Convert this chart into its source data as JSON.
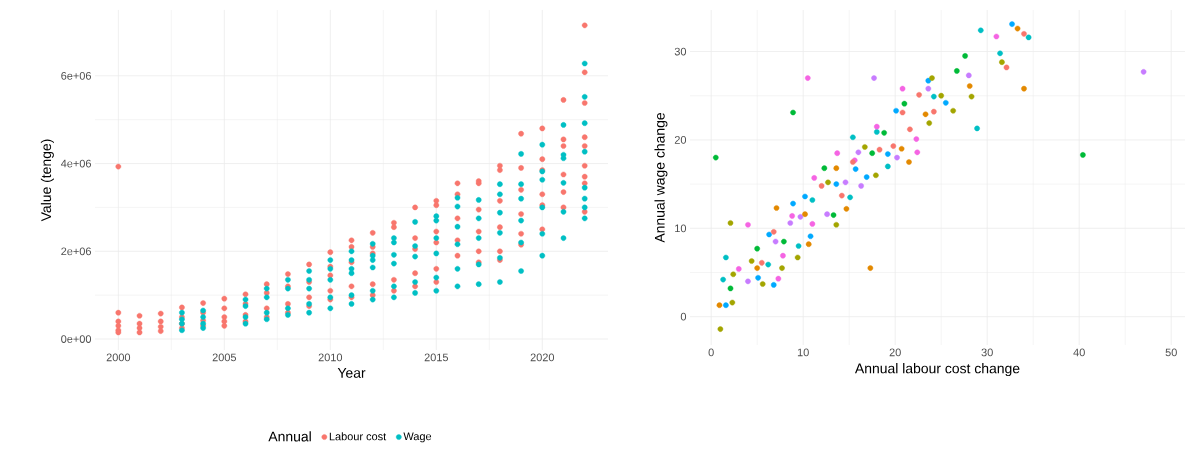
{
  "chart_data": [
    {
      "type": "scatter",
      "xlabel": "Year",
      "ylabel": "Value (tenge)",
      "legend_title": "Annual",
      "legend": "bottom",
      "grid": true,
      "marker": "circle",
      "xlim": [
        1998.9,
        2023.1
      ],
      "ylim": [
        -250000,
        7500000
      ],
      "xticks": [
        2000,
        2005,
        2010,
        2015,
        2020
      ],
      "yticks": [
        {
          "value": 0,
          "label": "0e+00"
        },
        {
          "value": 2000000,
          "label": "2e+06"
        },
        {
          "value": 4000000,
          "label": "4e+06"
        },
        {
          "value": 6000000,
          "label": "6e+06"
        }
      ],
      "series": [
        {
          "name": "Labour cost",
          "color": "#f8766d",
          "x": [
            2000,
            2000,
            2000,
            2000,
            2000,
            2000,
            2001,
            2001,
            2001,
            2001,
            2002,
            2002,
            2002,
            2002,
            2003,
            2003,
            2003,
            2003,
            2004,
            2004,
            2004,
            2004,
            2005,
            2005,
            2005,
            2005,
            2005,
            2006,
            2006,
            2006,
            2006,
            2007,
            2007,
            2007,
            2007,
            2008,
            2008,
            2008,
            2008,
            2009,
            2009,
            2009,
            2009,
            2010,
            2010,
            2010,
            2010,
            2010,
            2011,
            2011,
            2011,
            2011,
            2011,
            2012,
            2012,
            2012,
            2012,
            2012,
            2013,
            2013,
            2013,
            2013,
            2014,
            2014,
            2014,
            2014,
            2014,
            2015,
            2015,
            2015,
            2015,
            2015,
            2015,
            2016,
            2016,
            2016,
            2016,
            2016,
            2017,
            2017,
            2017,
            2017,
            2017,
            2017,
            2018,
            2018,
            2018,
            2018,
            2018,
            2018,
            2019,
            2019,
            2019,
            2019,
            2019,
            2019,
            2020,
            2020,
            2020,
            2020,
            2020,
            2020,
            2021,
            2021,
            2021,
            2021,
            2021,
            2021,
            2022,
            2022,
            2022,
            2022,
            2022,
            2022,
            2022,
            2022,
            2022
          ],
          "values": [
            3930000,
            600000,
            400000,
            300000,
            200000,
            150000,
            530000,
            350000,
            250000,
            150000,
            580000,
            400000,
            280000,
            180000,
            720000,
            500000,
            350000,
            250000,
            820000,
            600000,
            420000,
            300000,
            920000,
            700000,
            500000,
            400000,
            300000,
            1020000,
            800000,
            550000,
            400000,
            1250000,
            1050000,
            700000,
            500000,
            1480000,
            1200000,
            800000,
            600000,
            1700000,
            1300000,
            950000,
            750000,
            1980000,
            1650000,
            1450000,
            1100000,
            900000,
            2250000,
            2100000,
            1750000,
            1200000,
            950000,
            2420000,
            2100000,
            1950000,
            1250000,
            1000000,
            2650000,
            2550000,
            1350000,
            1100000,
            3000000,
            2300000,
            2050000,
            1500000,
            1200000,
            3150000,
            3050000,
            2450000,
            2200000,
            1600000,
            1300000,
            3550000,
            3300000,
            2750000,
            2250000,
            1900000,
            3600000,
            3550000,
            2950000,
            2450000,
            2000000,
            1750000,
            3950000,
            3850000,
            3150000,
            2550000,
            2000000,
            1800000,
            4680000,
            3900000,
            3400000,
            2850000,
            2400000,
            2150000,
            4800000,
            4100000,
            3850000,
            3300000,
            3050000,
            2500000,
            5450000,
            4550000,
            4400000,
            3750000,
            3350000,
            3000000,
            7150000,
            6080000,
            5380000,
            4600000,
            4400000,
            3950000,
            3700000,
            3550000,
            2900000
          ]
        },
        {
          "name": "Wage",
          "color": "#00bfc4",
          "x": [
            2003,
            2003,
            2003,
            2003,
            2004,
            2004,
            2004,
            2004,
            2006,
            2006,
            2006,
            2006,
            2007,
            2007,
            2007,
            2007,
            2008,
            2008,
            2008,
            2008,
            2009,
            2009,
            2009,
            2009,
            2009,
            2010,
            2010,
            2010,
            2010,
            2010,
            2011,
            2011,
            2011,
            2011,
            2011,
            2011,
            2012,
            2012,
            2012,
            2012,
            2012,
            2012,
            2013,
            2013,
            2013,
            2013,
            2013,
            2013,
            2014,
            2014,
            2014,
            2014,
            2014,
            2015,
            2015,
            2015,
            2015,
            2015,
            2015,
            2016,
            2016,
            2016,
            2016,
            2016,
            2016,
            2017,
            2017,
            2017,
            2017,
            2017,
            2018,
            2018,
            2018,
            2018,
            2018,
            2018,
            2019,
            2019,
            2019,
            2019,
            2019,
            2019,
            2020,
            2020,
            2020,
            2020,
            2020,
            2020,
            2021,
            2021,
            2021,
            2021,
            2021,
            2021,
            2022,
            2022,
            2022,
            2022,
            2022,
            2022,
            2022,
            2022
          ],
          "values": [
            600000,
            450000,
            350000,
            200000,
            650000,
            500000,
            350000,
            250000,
            900000,
            750000,
            500000,
            350000,
            1150000,
            950000,
            600000,
            450000,
            1350000,
            1150000,
            700000,
            550000,
            1550000,
            1350000,
            1150000,
            800000,
            600000,
            1800000,
            1600000,
            1350000,
            950000,
            700000,
            2000000,
            1800000,
            1600000,
            1500000,
            1000000,
            800000,
            2170000,
            1900000,
            1800000,
            1630000,
            1100000,
            900000,
            2300000,
            2200000,
            1920000,
            1720000,
            1200000,
            950000,
            2670000,
            2120000,
            1880000,
            1300000,
            1050000,
            2800000,
            2700000,
            2300000,
            1950000,
            1400000,
            1100000,
            3220000,
            3020000,
            2560000,
            2160000,
            1600000,
            1200000,
            3170000,
            2750000,
            2300000,
            1700000,
            1250000,
            3530000,
            3300000,
            2880000,
            2420000,
            1850000,
            1300000,
            4220000,
            3530000,
            3200000,
            2700000,
            2200000,
            1550000,
            4430000,
            3820000,
            3630000,
            3000000,
            2400000,
            1900000,
            4880000,
            4200000,
            4120000,
            3560000,
            2900000,
            2300000,
            6280000,
            5520000,
            4920000,
            4270000,
            3450000,
            3200000,
            3000000,
            2750000
          ]
        }
      ]
    },
    {
      "type": "scatter",
      "xlabel": "Annual labour cost change",
      "ylabel": "Annual wage change",
      "grid": true,
      "marker": "circle",
      "xlim": [
        -2.3,
        51.5
      ],
      "ylim": [
        -3.2,
        34.7
      ],
      "xticks": [
        0,
        10,
        20,
        30,
        40,
        50
      ],
      "yticks": [
        0,
        10,
        20,
        30
      ],
      "series": [
        {
          "color": "#00ba38",
          "x": [
            0.5,
            8.9,
            40.4,
            26.7,
            27.6,
            21,
            12.3,
            5,
            2.1,
            13.3,
            17.5,
            7.9,
            18.8
          ],
          "values": [
            18.0,
            23.1,
            18.3,
            27.8,
            29.5,
            24.1,
            16.8,
            7.7,
            3.2,
            11.5,
            18.5,
            8.5,
            20.8
          ]
        },
        {
          "color": "#00bfc4",
          "x": [
            29.3,
            31.4,
            28.9,
            34.5,
            24.2,
            15.4,
            1.3,
            1.6,
            15.1,
            19.2,
            6.2,
            9.5,
            18,
            11
          ],
          "values": [
            32.4,
            29.8,
            21.3,
            31.6,
            24.9,
            20.3,
            4.2,
            6.7,
            13.5,
            17,
            5.9,
            8,
            20.9,
            13.2
          ]
        },
        {
          "color": "#00a9ff",
          "x": [
            32.7,
            23.6,
            25.5,
            20.1,
            10.2,
            8.9,
            6.3,
            10.8,
            16.9,
            15.7,
            19.2,
            5.1,
            6.8,
            1.6,
            13.6
          ],
          "values": [
            33.1,
            26.7,
            24.2,
            23.3,
            13.6,
            12.8,
            9.3,
            9.1,
            15.8,
            16.7,
            18.4,
            4.4,
            3.6,
            1.3,
            15
          ]
        },
        {
          "color": "#c77cff",
          "x": [
            47,
            28,
            23.6,
            17.7,
            20.2,
            16,
            9.7,
            8.6,
            7,
            4,
            12.6,
            14.6,
            16.3
          ],
          "values": [
            27.7,
            27.3,
            25.8,
            27,
            18,
            18.6,
            11.3,
            10.6,
            8.5,
            4,
            11.6,
            15.2,
            14.8
          ]
        },
        {
          "color": "#f564e3",
          "x": [
            31,
            20.8,
            10.5,
            4,
            18,
            22.4,
            22.3,
            13.7,
            11.2,
            8.8,
            7.3,
            3,
            7.8,
            15.6,
            11
          ],
          "values": [
            31.7,
            25.8,
            27,
            10.4,
            21.5,
            18.6,
            20.1,
            18.5,
            15.7,
            11.4,
            4.3,
            5.4,
            6.9,
            17.7,
            10.5
          ]
        },
        {
          "color": "#f8766d",
          "x": [
            34,
            32.1,
            22.6,
            24.2,
            20.8,
            21.6,
            18.3,
            15.4,
            12,
            6.8,
            5.5,
            14.2,
            19.8
          ],
          "values": [
            32,
            28.2,
            25.1,
            23.2,
            23.1,
            21.2,
            18.9,
            17.5,
            14.8,
            9.6,
            6.1,
            13.7,
            19.3
          ]
        },
        {
          "color": "#e38900",
          "x": [
            33.3,
            34,
            28.1,
            23.3,
            21.5,
            17.3,
            13.6,
            10.6,
            7.1,
            14.7,
            10.2,
            0.9,
            5,
            20.7
          ],
          "values": [
            32.6,
            25.8,
            26.1,
            22.9,
            17.5,
            5.5,
            16.8,
            8.2,
            12.3,
            12.2,
            11.6,
            1.3,
            5.5,
            19
          ]
        },
        {
          "color": "#a3a500",
          "x": [
            31.6,
            28.3,
            26.3,
            25,
            23.7,
            24,
            16.7,
            17.9,
            13.6,
            12.7,
            9.4,
            2.1,
            2.4,
            2.3,
            1,
            5.6,
            7.7,
            4.4
          ],
          "values": [
            28.8,
            24.9,
            23.3,
            25,
            21.9,
            27,
            19.2,
            16,
            10.4,
            15.2,
            6.7,
            10.6,
            4.8,
            1.6,
            -1.4,
            3.7,
            5.5,
            6.3
          ]
        }
      ]
    }
  ]
}
